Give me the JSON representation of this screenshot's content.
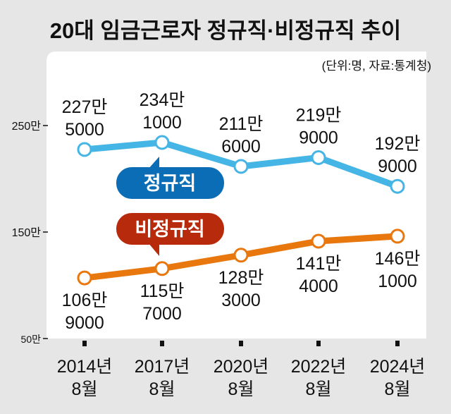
{
  "chart_data": {
    "type": "line",
    "title": "20대 임금근로자 정규직·비정규직 추이",
    "subtitle": "(단위:명, 자료:통계청)",
    "categories": [
      [
        "2014년",
        "8월"
      ],
      [
        "2017년",
        "8월"
      ],
      [
        "2020년",
        "8월"
      ],
      [
        "2022년",
        "8월"
      ],
      [
        "2024년",
        "8월"
      ]
    ],
    "yticks": [
      {
        "value": 2500000,
        "label": "250만"
      },
      {
        "value": 1500000,
        "label": "150만"
      },
      {
        "value": 500000,
        "label": "50만"
      }
    ],
    "ylim": [
      500000,
      2500000
    ],
    "grid": false,
    "series": [
      {
        "name": "정규직",
        "color": "#45b5e6",
        "label_color": "#0b6db5",
        "values": [
          2275000,
          2341000,
          2116000,
          2199000,
          1929000
        ],
        "labels": [
          [
            "227만",
            "5000"
          ],
          [
            "234만",
            "1000"
          ],
          [
            "211만",
            "6000"
          ],
          [
            "219만",
            "9000"
          ],
          [
            "192만",
            "9000"
          ]
        ]
      },
      {
        "name": "비정규직",
        "color": "#e8770e",
        "label_color": "#b82a0c",
        "values": [
          1069000,
          1157000,
          1283000,
          1414000,
          1461000
        ],
        "labels": [
          [
            "106만",
            "9000"
          ],
          [
            "115만",
            "7000"
          ],
          [
            "128만",
            "3000"
          ],
          [
            "141만",
            "4000"
          ],
          [
            "146만",
            "1000"
          ]
        ]
      }
    ]
  }
}
